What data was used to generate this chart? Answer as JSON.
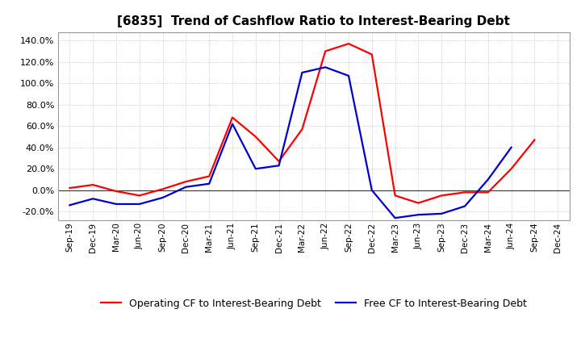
{
  "title": "[6835]  Trend of Cashflow Ratio to Interest-Bearing Debt",
  "x_labels": [
    "Sep-19",
    "Dec-19",
    "Mar-20",
    "Jun-20",
    "Sep-20",
    "Dec-20",
    "Mar-21",
    "Jun-21",
    "Sep-21",
    "Dec-21",
    "Mar-22",
    "Jun-22",
    "Sep-22",
    "Dec-22",
    "Mar-23",
    "Jun-23",
    "Sep-23",
    "Dec-23",
    "Mar-24",
    "Jun-24",
    "Sep-24",
    "Dec-24"
  ],
  "operating_cf": [
    2.0,
    5.0,
    -1.0,
    -5.0,
    1.0,
    8.0,
    13.0,
    68.0,
    50.0,
    27.0,
    57.0,
    130.0,
    137.0,
    127.0,
    -5.0,
    -12.0,
    -5.0,
    -2.0,
    -2.0,
    20.0,
    47.0,
    null
  ],
  "free_cf": [
    -14.0,
    -8.0,
    -13.0,
    -13.0,
    -7.0,
    3.0,
    6.0,
    62.0,
    20.0,
    23.0,
    110.0,
    115.0,
    107.0,
    0.0,
    -26.0,
    -23.0,
    -22.0,
    -15.0,
    10.0,
    40.0,
    null,
    null
  ],
  "operating_cf_color": "#ff0000",
  "free_cf_color": "#0000cc",
  "background_color": "#ffffff",
  "plot_bg_color": "#ffffff",
  "grid_color": "#bbbbbb",
  "ylim": [
    -28,
    148
  ],
  "yticks": [
    -20.0,
    0.0,
    20.0,
    40.0,
    60.0,
    80.0,
    100.0,
    120.0,
    140.0
  ],
  "legend_operating": "Operating CF to Interest-Bearing Debt",
  "legend_free": "Free CF to Interest-Bearing Debt",
  "line_width": 1.6
}
